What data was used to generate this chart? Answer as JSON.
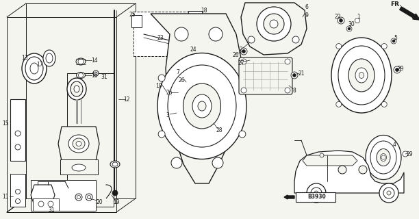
{
  "bg_color": "#f5f5f0",
  "line_color": "#1a1a1a",
  "label_color": "#1a1a1a",
  "figsize": [
    6.12,
    3.2
  ],
  "dpi": 100,
  "xlim": [
    0,
    612
  ],
  "ylim": [
    0,
    320
  ]
}
